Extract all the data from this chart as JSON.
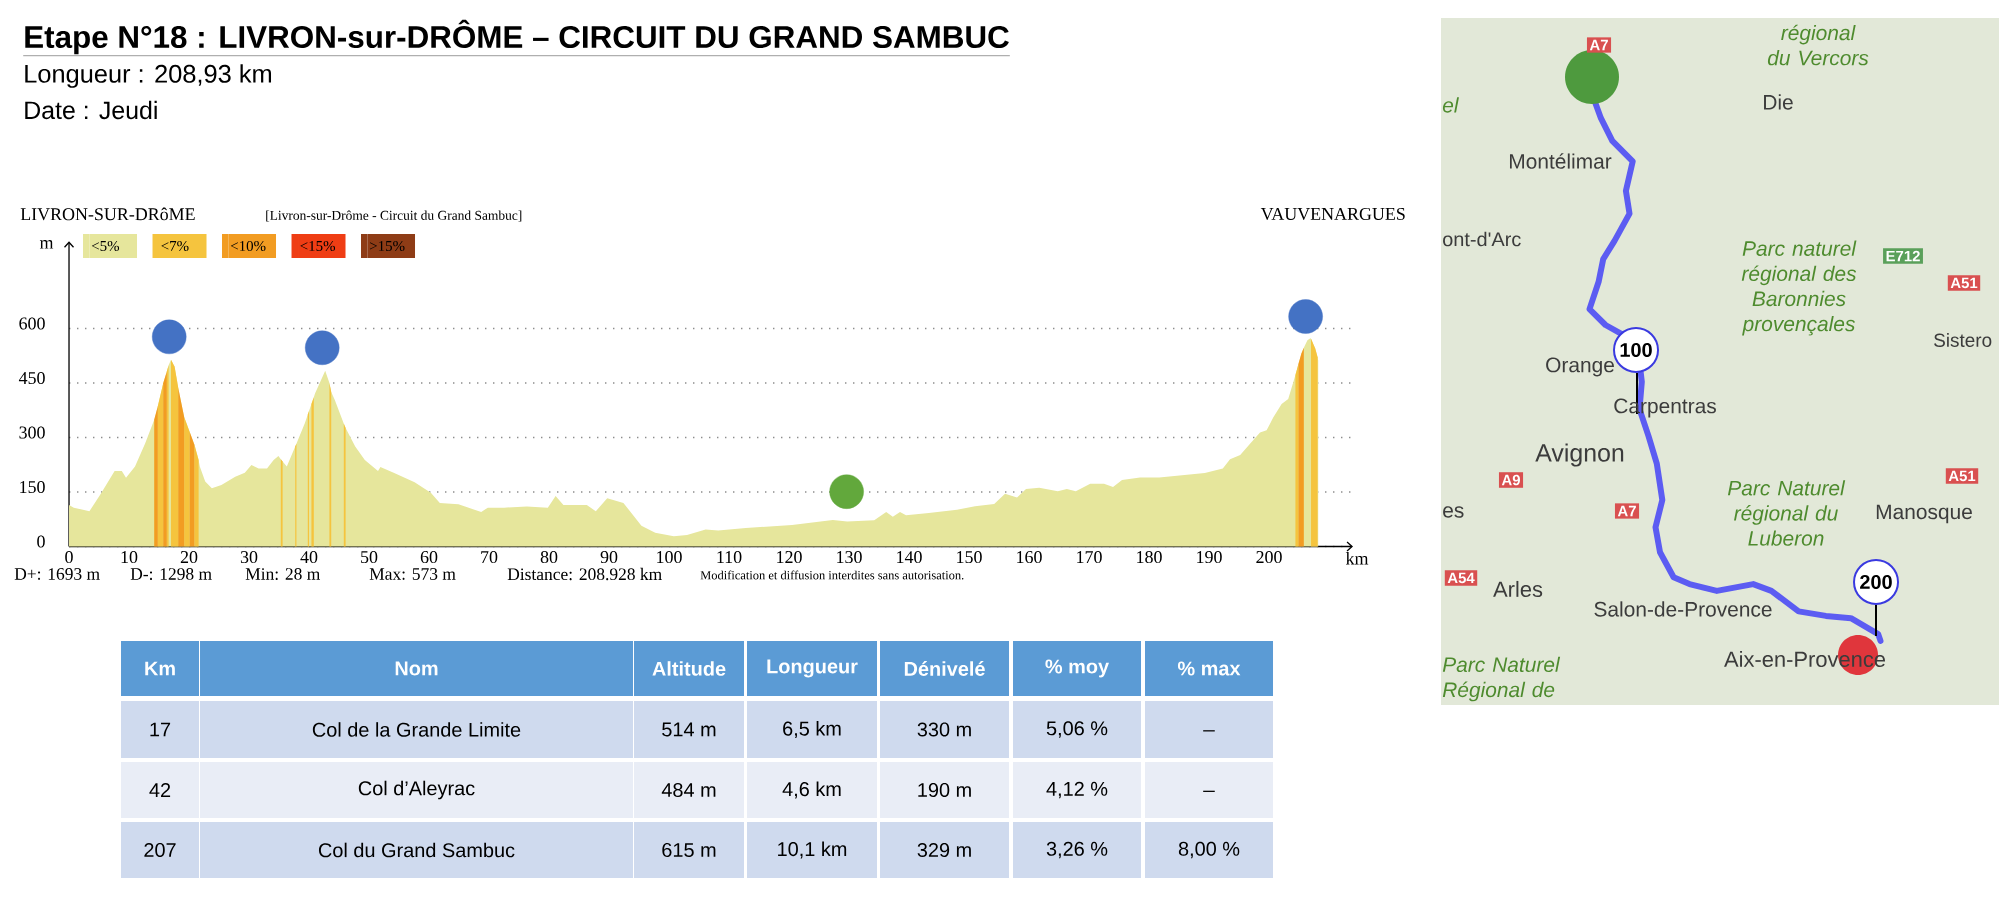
{
  "chart_data": [
    {
      "type": "area",
      "title": "Etape N°18 : LIVRON-sur-DRÔME – CIRCUIT DU GRAND SAMBUC",
      "subtitle": "Longueur : 208,93 km",
      "annotations": [
        "Date : Jeudi",
        "LIVRON-SUR-DRôME",
        "[Livron-sur-Drôme - Circuit du Grand Sambuc]",
        "VAUVENARGUES",
        "D+: 1693 m",
        "D-: 1298 m",
        "Min: 28 m",
        "Max: 573 m",
        "Distance: 208.928 km",
        "Modification et diffusion interdites sans autorisation."
      ],
      "xlabel": "km",
      "ylabel": "m",
      "xlim": [
        0,
        214
      ],
      "ylim": [
        0,
        840
      ],
      "xticks": [
        0,
        10,
        20,
        30,
        40,
        50,
        60,
        70,
        80,
        90,
        100,
        110,
        120,
        130,
        140,
        150,
        160,
        170,
        180,
        190,
        200
      ],
      "yticks": [
        0,
        150,
        300,
        450,
        600
      ],
      "grid": "y",
      "legend": "top left",
      "series": [
        {
          "name": "<5%",
          "color": "#e6e69c",
          "x": [
            0,
            0.8,
            3.4,
            5.3,
            7.6,
            8.8,
            9.5,
            11.0,
            12.7,
            14.2,
            14.8,
            15.7,
            16.3,
            16.6,
            17.0,
            17.6,
            18.2,
            18.5,
            19.2,
            20.1,
            20.9,
            21.6,
            21.8,
            22.7,
            23.8,
            25.4,
            27.7,
            29.3,
            30.4,
            31.6,
            33.0,
            34.1,
            34.9,
            35.3,
            35.6,
            36.3,
            37.7,
            37.9,
            39.3,
            39.8,
            40.0,
            40.4,
            40.8,
            41.0,
            42.7,
            43.4,
            43.7,
            44.3,
            45.8,
            46.1,
            47.7,
            49.3,
            51.5,
            51.9,
            54.2,
            57.6,
            60.3,
            61.8,
            64.9,
            68.7,
            69.8,
            72.5,
            76.3,
            79.8,
            81.1,
            82.4,
            86.3,
            87.8,
            89.7,
            92.4,
            95.4,
            97.7,
            100.8,
            103.0,
            106.1,
            108.2,
            112.8,
            120.5,
            127.3,
            129.7,
            134.2,
            136.2,
            137.3,
            138.5,
            139.5,
            143.3,
            148.0,
            151.0,
            154.2,
            156.0,
            158.0,
            159.5,
            161.7,
            164.8,
            166.3,
            167.8,
            170.2,
            172.5,
            174.0,
            175.5,
            178.5,
            181.7,
            185.5,
            189.3,
            192.3,
            193.5,
            195.2,
            196.8,
            198.5,
            199.6,
            200.7,
            202.1,
            203.2,
            204.4,
            204.9,
            205.4,
            205.8,
            206.4,
            206.9,
            207.0,
            207.7,
            208.1,
            208.2
          ],
          "values": [
            114,
            107,
            97,
            145,
            208,
            208,
            189,
            220,
            284,
            349,
            386,
            449,
            482,
            499,
            514,
            495,
            437,
            412,
            356,
            316,
            280,
            238,
            220,
            179,
            160,
            169,
            192,
            203,
            224,
            215,
            215,
            238,
            249,
            240,
            234,
            220,
            275,
            283,
            339,
            363,
            373,
            392,
            411,
            421,
            484,
            450,
            425,
            403,
            338,
            326,
            275,
            238,
            208,
            219,
            202,
            177,
            148,
            120,
            116,
            95,
            107,
            107,
            110,
            107,
            139,
            114,
            114,
            97,
            133,
            120,
            57,
            38,
            28,
            32,
            47,
            44,
            51,
            59,
            73,
            69,
            72,
            95,
            82,
            95,
            86,
            92,
            101,
            111,
            117,
            145,
            135,
            158,
            162,
            152,
            158,
            152,
            173,
            173,
            164,
            183,
            190,
            190,
            196,
            202,
            215,
            240,
            252,
            282,
            314,
            320,
            355,
            392,
            406,
            472,
            502,
            531,
            547,
            568,
            573,
            572,
            545,
            521,
            512
          ]
        },
        {
          "name": "<7%",
          "color": "#f5c43e",
          "x": [
            14.8,
            15.7,
            null,
            16.3,
            16.6,
            null,
            17.0,
            17.6,
            18.2,
            null,
            19.2,
            20.1,
            null,
            20.9,
            21.6,
            null,
            35.3,
            35.6,
            null,
            37.7,
            37.9,
            null,
            39.8,
            40.0,
            null,
            40.4,
            40.8,
            null,
            43.4,
            43.7,
            null,
            45.8,
            46.1,
            null,
            204.4,
            204.9,
            null,
            207.0,
            207.7,
            208.1
          ],
          "values": [
            386,
            449,
            null,
            482,
            499,
            null,
            514,
            495,
            437,
            null,
            356,
            316,
            null,
            280,
            238,
            null,
            240,
            234,
            null,
            275,
            283,
            null,
            363,
            373,
            null,
            392,
            411,
            null,
            450,
            425,
            null,
            338,
            326,
            null,
            472,
            502,
            null,
            572,
            545,
            521
          ]
        },
        {
          "name": "<10%",
          "color": "#f29c22",
          "x": [
            14.2,
            14.8,
            null,
            15.7,
            16.3,
            null,
            18.2,
            18.5,
            19.2,
            null,
            20.1,
            20.9,
            null,
            204.9,
            205.4,
            205.8
          ],
          "values": [
            349,
            386,
            null,
            449,
            482,
            null,
            437,
            412,
            356,
            null,
            316,
            280,
            null,
            502,
            531,
            547
          ]
        },
        {
          "name": "<15%",
          "color": "#ef3d14"
        },
        {
          "name": ">15%",
          "color": "#8e3c16"
        },
        {
          "type": "scatter",
          "color": "#4472c4",
          "marker": "circle",
          "x": [
            16.7,
            42.2,
            206.1
          ],
          "values": [
            577,
            547,
            633
          ]
        },
        {
          "type": "scatter",
          "color": "#62a83c",
          "marker": "circle",
          "x": [
            129.6
          ],
          "values": [
            151
          ]
        }
      ]
    },
    {
      "type": "other",
      "annotations": [
        "Km",
        "Nom",
        "Altitude",
        "Longueur",
        "Dénivelé",
        "% moy",
        "% max",
        "17",
        "Col de la Grande Limite",
        "514 m",
        "6,5 km",
        "330 m",
        "5,06 %",
        "_",
        "42",
        "Col d’Aleyrac",
        "484 m",
        "4,6 km",
        "190 m",
        "4,12 %",
        "_",
        "207",
        "Col du Grand Sambuc",
        "615 m",
        "10,1 km",
        "329 m",
        "3,26 %",
        "8,00 %"
      ]
    },
    {
      "type": "other",
      "annotations": [
        "régional du Vercors",
        "A7",
        "Die",
        "Montélimar",
        "ont-d'Arc",
        "Parc naturel régional des Baronnies provençales",
        "E712",
        "A51",
        "Sistero",
        "100",
        "Orange",
        "Carpentras",
        "Avignon",
        "A9",
        "A51",
        "A7",
        "Parc Naturel régional du Luberon",
        "Manosque",
        "es",
        "A54",
        "Arles",
        "200",
        "Salon-de-Provence",
        "Aix-en-Provence",
        "Parc Naturel Régional de",
        "el"
      ]
    }
  ]
}
